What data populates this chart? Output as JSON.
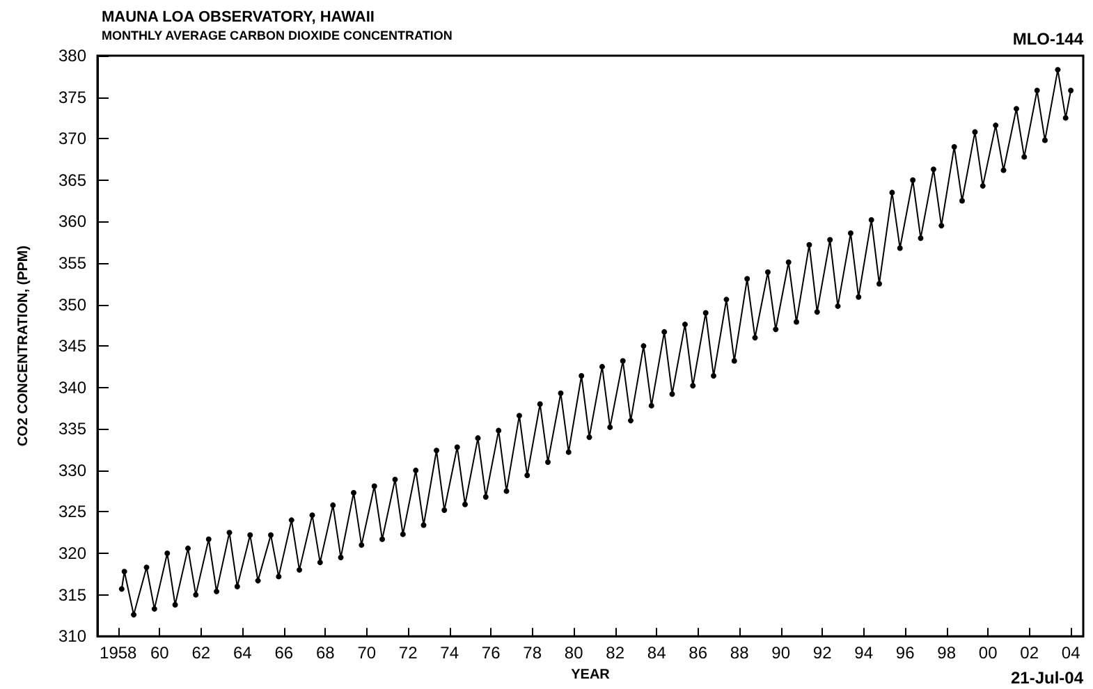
{
  "chart_data": {
    "type": "line",
    "title": "MAUNA LOA OBSERVATORY, HAWAII",
    "subtitle": "MONTHLY AVERAGE CARBON DIOXIDE CONCENTRATION",
    "xlabel": "YEAR",
    "ylabel": "CO2 CONCENTRATION, (PPM)",
    "annotations": [
      "MLO-144",
      "21-Jul-04"
    ],
    "x": [
      1958.17,
      1958.3,
      1958.75,
      1959.37,
      1959.75,
      1960.37,
      1960.75,
      1961.37,
      1961.75,
      1962.37,
      1962.75,
      1963.37,
      1963.75,
      1964.37,
      1964.75,
      1965.37,
      1965.75,
      1966.37,
      1966.75,
      1967.37,
      1967.75,
      1968.37,
      1968.75,
      1969.37,
      1969.75,
      1970.37,
      1970.75,
      1971.37,
      1971.75,
      1972.37,
      1972.75,
      1973.37,
      1973.75,
      1974.37,
      1974.75,
      1975.37,
      1975.75,
      1976.37,
      1976.75,
      1977.37,
      1977.75,
      1978.37,
      1978.75,
      1979.37,
      1979.75,
      1980.37,
      1980.75,
      1981.37,
      1981.75,
      1982.37,
      1982.75,
      1983.37,
      1983.75,
      1984.37,
      1984.75,
      1985.37,
      1985.75,
      1986.37,
      1986.75,
      1987.37,
      1987.75,
      1988.37,
      1988.75,
      1989.37,
      1989.75,
      1990.37,
      1990.75,
      1991.37,
      1991.75,
      1992.37,
      1992.75,
      1993.37,
      1993.75,
      1994.37,
      1994.75,
      1995.37,
      1995.75,
      1996.37,
      1996.75,
      1997.37,
      1997.75,
      1998.37,
      1998.75,
      1999.37,
      1999.75,
      2000.37,
      2000.75,
      2001.37,
      2001.75,
      2002.37,
      2002.75,
      2003.37,
      2003.75,
      2004.0
    ],
    "series": [
      {
        "color": "#000000",
        "values": [
          315.7,
          317.8,
          312.6,
          318.3,
          313.3,
          320.0,
          313.8,
          320.6,
          315.0,
          321.7,
          315.4,
          322.5,
          316.0,
          322.2,
          316.7,
          322.2,
          317.2,
          324.0,
          318.0,
          324.6,
          318.9,
          325.8,
          319.5,
          327.3,
          321.0,
          328.1,
          321.7,
          328.9,
          322.3,
          330.0,
          323.4,
          332.4,
          325.2,
          332.8,
          325.9,
          333.9,
          326.8,
          334.8,
          327.5,
          336.6,
          329.4,
          338.0,
          331.0,
          339.3,
          332.2,
          341.4,
          334.0,
          342.5,
          335.2,
          343.2,
          336.0,
          345.0,
          337.8,
          346.7,
          339.2,
          347.6,
          340.2,
          349.0,
          341.4,
          350.6,
          343.2,
          353.1,
          346.0,
          353.9,
          347.0,
          355.1,
          347.9,
          357.2,
          349.1,
          357.8,
          349.8,
          358.6,
          350.9,
          360.2,
          352.5,
          363.5,
          356.8,
          365.0,
          358.0,
          366.3,
          359.5,
          369.0,
          362.5,
          370.8,
          364.3,
          371.6,
          366.2,
          373.6,
          367.8,
          375.8,
          369.8,
          378.3,
          372.5,
          375.8
        ]
      }
    ],
    "xlim": [
      1957,
      2004.6
    ],
    "xticks": [
      {
        "value": 1958,
        "label": "1958"
      },
      {
        "value": 1960,
        "label": "60"
      },
      {
        "value": 1962,
        "label": "62"
      },
      {
        "value": 1964,
        "label": "64"
      },
      {
        "value": 1966,
        "label": "66"
      },
      {
        "value": 1968,
        "label": "68"
      },
      {
        "value": 1970,
        "label": "70"
      },
      {
        "value": 1972,
        "label": "72"
      },
      {
        "value": 1974,
        "label": "74"
      },
      {
        "value": 1976,
        "label": "76"
      },
      {
        "value": 1978,
        "label": "78"
      },
      {
        "value": 1980,
        "label": "80"
      },
      {
        "value": 1982,
        "label": "82"
      },
      {
        "value": 1984,
        "label": "84"
      },
      {
        "value": 1986,
        "label": "86"
      },
      {
        "value": 1988,
        "label": "88"
      },
      {
        "value": 1990,
        "label": "90"
      },
      {
        "value": 1992,
        "label": "92"
      },
      {
        "value": 1994,
        "label": "94"
      },
      {
        "value": 1996,
        "label": "96"
      },
      {
        "value": 1998,
        "label": "98"
      },
      {
        "value": 2000,
        "label": "00"
      },
      {
        "value": 2002,
        "label": "02"
      },
      {
        "value": 2004,
        "label": "04"
      }
    ],
    "ylim": [
      310,
      380
    ],
    "yticks": [
      310,
      315,
      320,
      325,
      330,
      335,
      340,
      345,
      350,
      355,
      360,
      365,
      370,
      375,
      380
    ],
    "grid": false,
    "marker": "circle",
    "line_style": "solid"
  }
}
